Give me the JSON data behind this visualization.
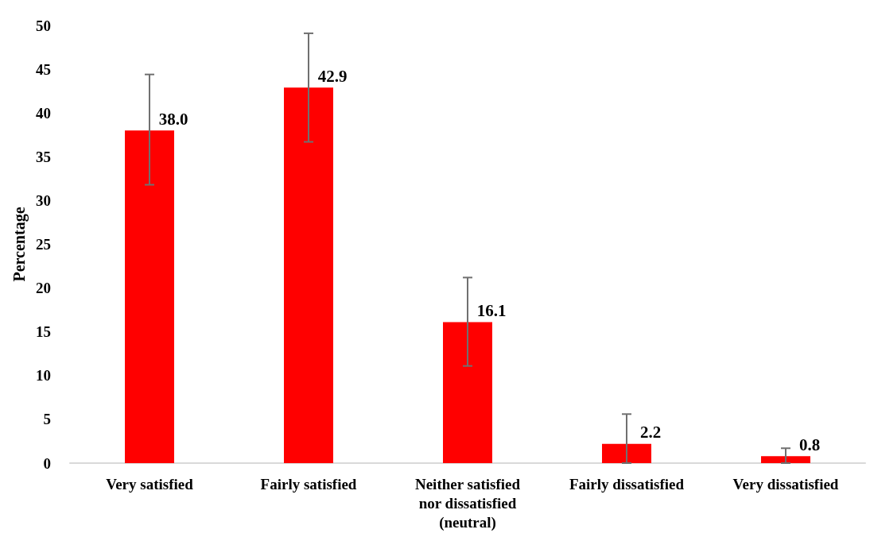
{
  "chart_data": {
    "type": "bar",
    "ylabel": "Percentage",
    "categories": [
      "Very satisfied",
      "Fairly satisfied",
      "Neither satisfied\nnor dissatisfied\n(neutral)",
      "Fairly dissatisfied",
      "Very dissatisfied"
    ],
    "values": [
      38.0,
      42.9,
      16.1,
      2.2,
      0.8
    ],
    "errors": [
      [
        31.8,
        44.4
      ],
      [
        36.7,
        49.1
      ],
      [
        11.1,
        21.2
      ],
      [
        0,
        5.6
      ],
      [
        0,
        1.7
      ]
    ],
    "value_labels": [
      "38.0",
      "42.9",
      "16.1",
      "2.2",
      "0.8"
    ],
    "color": "#ff0000",
    "ylim": [
      0,
      50
    ],
    "yticks": [
      0,
      5,
      10,
      15,
      20,
      25,
      30,
      35,
      40,
      45,
      50
    ],
    "grid": false
  }
}
